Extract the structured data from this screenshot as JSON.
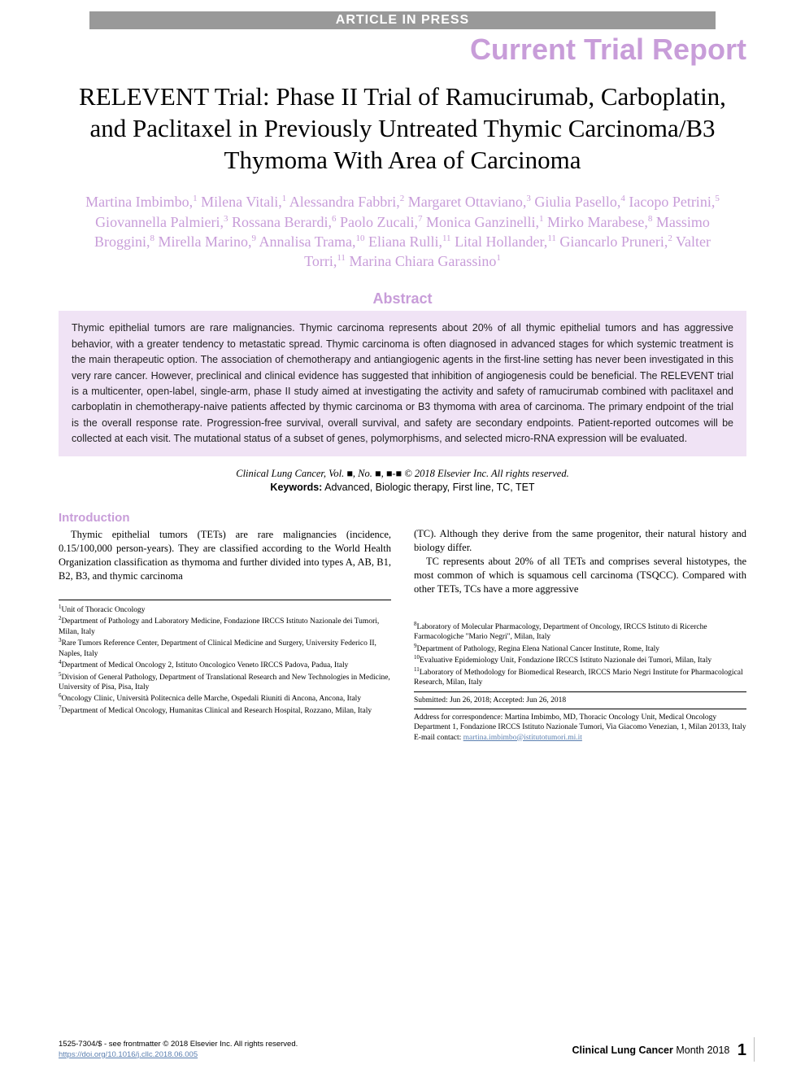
{
  "colors": {
    "accent": "#c89dd9",
    "abstract_bg": "#f0e3f5",
    "banner_bg": "#999999",
    "link": "#5b7fb0",
    "text": "#000000"
  },
  "typography": {
    "title_fontsize": 31,
    "report_type_fontsize": 36,
    "authors_fontsize": 18,
    "abstract_fontsize": 12.5,
    "body_fontsize": 12.5,
    "affil_fontsize": 9.5
  },
  "header": {
    "banner": "ARTICLE IN PRESS",
    "report_type": "Current Trial Report"
  },
  "title": "RELEVENT Trial: Phase II Trial of Ramucirumab, Carboplatin, and Paclitaxel in Previously Untreated Thymic Carcinoma/B3 Thymoma With Area of Carcinoma",
  "authors_html": "Martina Imbimbo,<sup>1</sup> Milena Vitali,<sup>1</sup> Alessandra Fabbri,<sup>2</sup> Margaret Ottaviano,<sup>3</sup> Giulia Pasello,<sup>4</sup> Iacopo Petrini,<sup>5</sup> Giovannella Palmieri,<sup>3</sup> Rossana Berardi,<sup>6</sup> Paolo Zucali,<sup>7</sup> Monica Ganzinelli,<sup>1</sup> Mirko Marabese,<sup>8</sup> Massimo Broggini,<sup>8</sup> Mirella Marino,<sup>9</sup> Annalisa Trama,<sup>10</sup> Eliana Rulli,<sup>11</sup> Lital Hollander,<sup>11</sup> Giancarlo Pruneri,<sup>2</sup> Valter Torri,<sup>11</sup> Marina Chiara Garassino<sup>1</sup>",
  "abstract": {
    "heading": "Abstract",
    "text": "Thymic epithelial tumors are rare malignancies. Thymic carcinoma represents about 20% of all thymic epithelial tumors and has aggressive behavior, with a greater tendency to metastatic spread. Thymic carcinoma is often diagnosed in advanced stages for which systemic treatment is the main therapeutic option. The association of chemotherapy and antiangiogenic agents in the first-line setting has never been investigated in this very rare cancer. However, preclinical and clinical evidence has suggested that inhibition of angiogenesis could be beneficial. The RELEVENT trial is a multicenter, open-label, single-arm, phase II study aimed at investigating the activity and safety of ramucirumab combined with paclitaxel and carboplatin in chemotherapy-naive patients affected by thymic carcinoma or B3 thymoma with area of carcinoma. The primary endpoint of the trial is the overall response rate. Progression-free survival, overall survival, and safety are secondary endpoints. Patient-reported outcomes will be collected at each visit. The mutational status of a subset of genes, polymorphisms, and selected micro-RNA expression will be evaluated."
  },
  "citation": {
    "journal": "Clinical Lung Cancer",
    "vol": "Vol. ■, No. ■, ■-■",
    "copyright": "© 2018 Elsevier Inc. All rights reserved."
  },
  "keywords": {
    "label": "Keywords:",
    "text": "Advanced, Biologic therapy, First line, TC, TET"
  },
  "introduction": {
    "heading": "Introduction",
    "left_paragraphs": [
      "Thymic epithelial tumors (TETs) are rare malignancies (incidence, 0.15/100,000 person-years). They are classified according to the World Health Organization classification as thymoma and further divided into types A, AB, B1, B2, B3, and thymic carcinoma"
    ],
    "right_paragraphs": [
      "(TC). Although they derive from the same progenitor, their natural history and biology differ.",
      "TC represents about 20% of all TETs and comprises several histotypes, the most common of which is squamous cell carcinoma (TSQCC). Compared with other TETs, TCs have a more aggressive"
    ]
  },
  "affiliations_left": [
    {
      "n": "1",
      "text": "Unit of Thoracic Oncology"
    },
    {
      "n": "2",
      "text": "Department of Pathology and Laboratory Medicine, Fondazione IRCCS Istituto Nazionale dei Tumori, Milan, Italy"
    },
    {
      "n": "3",
      "text": "Rare Tumors Reference Center, Department of Clinical Medicine and Surgery, University Federico II, Naples, Italy"
    },
    {
      "n": "4",
      "text": "Department of Medical Oncology 2, Istituto Oncologico Veneto IRCCS Padova, Padua, Italy"
    },
    {
      "n": "5",
      "text": "Division of General Pathology, Department of Translational Research and New Technologies in Medicine, University of Pisa, Pisa, Italy"
    },
    {
      "n": "6",
      "text": "Oncology Clinic, Università Politecnica delle Marche, Ospedali Riuniti di Ancona, Ancona, Italy"
    },
    {
      "n": "7",
      "text": "Department of Medical Oncology, Humanitas Clinical and Research Hospital, Rozzano, Milan, Italy"
    }
  ],
  "affiliations_right": [
    {
      "n": "8",
      "text": "Laboratory of Molecular Pharmacology, Department of Oncology, IRCCS Istituto di Ricerche Farmacologiche \"Mario Negri\", Milan, Italy"
    },
    {
      "n": "9",
      "text": "Department of Pathology, Regina Elena National Cancer Institute, Rome, Italy"
    },
    {
      "n": "10",
      "text": "Evaluative Epidemiology Unit, Fondazione IRCCS Istituto Nazionale dei Tumori, Milan, Italy"
    },
    {
      "n": "11",
      "text": "Laboratory of Methodology for Biomedical Research, IRCCS Mario Negri Institute for Pharmacological Research, Milan, Italy"
    }
  ],
  "dates": {
    "submitted": "Submitted: Jun 26, 2018; Accepted: Jun 26, 2018"
  },
  "correspondence": {
    "text": "Address for correspondence: Martina Imbimbo, MD, Thoracic Oncology Unit, Medical Oncology Department 1, Fondazione IRCCS Istituto Nazionale Tumori, Via Giacomo Venezian, 1, Milan 20133, Italy",
    "email_label": "E-mail contact:",
    "email": "martina.imbimbo@istitutotumori.mi.it"
  },
  "footer": {
    "issn": "1525-7304/$ - see frontmatter © 2018 Elsevier Inc. All rights reserved.",
    "doi": "https://doi.org/10.1016/j.cllc.2018.06.005",
    "journal": "Clinical Lung Cancer",
    "issue": "Month 2018",
    "page": "1"
  }
}
